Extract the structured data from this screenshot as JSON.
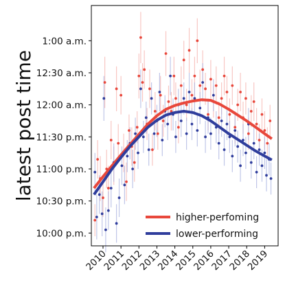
{
  "chart_data": {
    "type": "scatter",
    "title": "",
    "xlabel": "",
    "ylabel": "latest post time",
    "xlim": [
      2009.35,
      2019.75
    ],
    "ylim": [
      -2.2,
      1.55
    ],
    "x_ticks": [
      {
        "value": 2010,
        "label": "2010"
      },
      {
        "value": 2011,
        "label": "2011"
      },
      {
        "value": 2012,
        "label": "2012"
      },
      {
        "value": 2013,
        "label": "2013"
      },
      {
        "value": 2014,
        "label": "2014"
      },
      {
        "value": 2015,
        "label": "2015"
      },
      {
        "value": 2016,
        "label": "2016"
      },
      {
        "value": 2017,
        "label": "2017"
      },
      {
        "value": 2018,
        "label": "2018"
      },
      {
        "value": 2019,
        "label": "2019"
      }
    ],
    "y_ticks": [
      {
        "value": 1.0,
        "label": "1:00 a.m."
      },
      {
        "value": 0.5,
        "label": "12:30 a.m."
      },
      {
        "value": 0.0,
        "label": "12:00 a.m."
      },
      {
        "value": -0.5,
        "label": "11:30 p.m."
      },
      {
        "value": -1.0,
        "label": "11:00 p.m."
      },
      {
        "value": -1.5,
        "label": "10:30 p.m."
      },
      {
        "value": -2.0,
        "label": "10:00 p.m."
      }
    ],
    "legend_position": "lower-right",
    "series": [
      {
        "name": "higher-perfoming",
        "color": "#e8473b",
        "error_color": "#f5b3ad",
        "trend": [
          [
            2009.5,
            -1.3
          ],
          [
            2010.0,
            -1.12
          ],
          [
            2010.5,
            -0.95
          ],
          [
            2011.0,
            -0.78
          ],
          [
            2011.5,
            -0.62
          ],
          [
            2012.0,
            -0.46
          ],
          [
            2012.5,
            -0.3
          ],
          [
            2013.0,
            -0.17
          ],
          [
            2013.5,
            -0.07
          ],
          [
            2014.0,
            -0.01
          ],
          [
            2014.5,
            0.03
          ],
          [
            2015.0,
            0.06
          ],
          [
            2015.5,
            0.08
          ],
          [
            2016.0,
            0.07
          ],
          [
            2016.5,
            0.01
          ],
          [
            2017.0,
            -0.07
          ],
          [
            2017.5,
            -0.16
          ],
          [
            2018.0,
            -0.25
          ],
          [
            2018.5,
            -0.35
          ],
          [
            2019.0,
            -0.45
          ],
          [
            2019.4,
            -0.53
          ]
        ],
        "points": [
          [
            2009.55,
            -1.8,
            0.25
          ],
          [
            2009.7,
            -0.85,
            0.3
          ],
          [
            2009.85,
            -1.15,
            0.35
          ],
          [
            2010.0,
            -1.45,
            0.3
          ],
          [
            2010.1,
            0.35,
            0.4
          ],
          [
            2010.2,
            -1.0,
            0.3
          ],
          [
            2010.3,
            -1.3,
            0.35
          ],
          [
            2010.45,
            -0.55,
            0.3
          ],
          [
            2010.6,
            -0.95,
            0.3
          ],
          [
            2010.75,
            0.25,
            0.35
          ],
          [
            2010.85,
            -0.6,
            0.3
          ],
          [
            2011.0,
            0.15,
            0.3
          ],
          [
            2011.15,
            -0.75,
            0.3
          ],
          [
            2011.3,
            -1.2,
            0.3
          ],
          [
            2011.45,
            -0.4,
            0.25
          ],
          [
            2011.6,
            -0.65,
            0.3
          ],
          [
            2011.75,
            -0.9,
            0.3
          ],
          [
            2011.9,
            -0.35,
            0.25
          ],
          [
            2012.0,
            0.45,
            0.35
          ],
          [
            2012.1,
            1.05,
            0.4
          ],
          [
            2012.2,
            0.35,
            0.3
          ],
          [
            2012.3,
            0.55,
            0.3
          ],
          [
            2012.45,
            -0.3,
            0.25
          ],
          [
            2012.6,
            0.25,
            0.3
          ],
          [
            2012.75,
            -0.7,
            0.25
          ],
          [
            2012.9,
            -0.1,
            0.3
          ],
          [
            2013.05,
            -0.45,
            0.25
          ],
          [
            2013.2,
            0.15,
            0.3
          ],
          [
            2013.35,
            -0.25,
            0.25
          ],
          [
            2013.5,
            0.8,
            0.35
          ],
          [
            2013.65,
            0.05,
            0.25
          ],
          [
            2013.8,
            -0.1,
            0.3
          ],
          [
            2013.95,
            0.45,
            0.3
          ],
          [
            2014.05,
            0.1,
            0.25
          ],
          [
            2014.2,
            -0.35,
            0.25
          ],
          [
            2014.35,
            0.3,
            0.3
          ],
          [
            2014.5,
            0.7,
            0.3
          ],
          [
            2014.65,
            0.0,
            0.25
          ],
          [
            2014.8,
            0.85,
            0.35
          ],
          [
            2014.95,
            0.15,
            0.25
          ],
          [
            2015.1,
            0.45,
            0.3
          ],
          [
            2015.25,
            1.0,
            0.35
          ],
          [
            2015.4,
            0.3,
            0.25
          ],
          [
            2015.55,
            0.55,
            0.3
          ],
          [
            2015.7,
            0.25,
            0.25
          ],
          [
            2015.85,
            -0.15,
            0.25
          ],
          [
            2016.0,
            0.4,
            0.3
          ],
          [
            2016.15,
            0.05,
            0.25
          ],
          [
            2016.3,
            0.3,
            0.3
          ],
          [
            2016.45,
            -0.2,
            0.25
          ],
          [
            2016.6,
            0.1,
            0.25
          ],
          [
            2016.75,
            0.45,
            0.3
          ],
          [
            2016.9,
            0.2,
            0.25
          ],
          [
            2017.05,
            -0.15,
            0.25
          ],
          [
            2017.2,
            0.3,
            0.3
          ],
          [
            2017.35,
            -0.35,
            0.25
          ],
          [
            2017.5,
            0.0,
            0.25
          ],
          [
            2017.65,
            0.2,
            0.3
          ],
          [
            2017.8,
            -0.2,
            0.25
          ],
          [
            2017.95,
            0.1,
            0.25
          ],
          [
            2018.1,
            -0.45,
            0.25
          ],
          [
            2018.25,
            -0.1,
            0.25
          ],
          [
            2018.4,
            0.05,
            0.3
          ],
          [
            2018.55,
            -0.3,
            0.25
          ],
          [
            2018.7,
            -0.55,
            0.25
          ],
          [
            2018.85,
            -0.15,
            0.25
          ],
          [
            2019.0,
            -0.4,
            0.3
          ],
          [
            2019.15,
            -0.6,
            0.25
          ],
          [
            2019.3,
            -0.25,
            0.25
          ]
        ]
      },
      {
        "name": "lower-performing",
        "color": "#2f3d9c",
        "error_color": "#aab3e0",
        "trend": [
          [
            2009.5,
            -1.4
          ],
          [
            2010.0,
            -1.2
          ],
          [
            2010.5,
            -1.0
          ],
          [
            2011.0,
            -0.82
          ],
          [
            2011.5,
            -0.65
          ],
          [
            2012.0,
            -0.5
          ],
          [
            2012.5,
            -0.35
          ],
          [
            2013.0,
            -0.24
          ],
          [
            2013.5,
            -0.16
          ],
          [
            2014.0,
            -0.12
          ],
          [
            2014.5,
            -0.1
          ],
          [
            2015.0,
            -0.12
          ],
          [
            2015.5,
            -0.17
          ],
          [
            2016.0,
            -0.25
          ],
          [
            2016.5,
            -0.35
          ],
          [
            2017.0,
            -0.45
          ],
          [
            2017.5,
            -0.54
          ],
          [
            2018.0,
            -0.63
          ],
          [
            2018.5,
            -0.72
          ],
          [
            2019.0,
            -0.8
          ],
          [
            2019.4,
            -0.86
          ]
        ],
        "points": [
          [
            2009.55,
            -1.05,
            0.3
          ],
          [
            2009.65,
            -1.75,
            0.35
          ],
          [
            2009.8,
            -1.4,
            0.3
          ],
          [
            2009.95,
            -1.7,
            0.35
          ],
          [
            2010.05,
            0.1,
            0.35
          ],
          [
            2010.15,
            -1.95,
            0.35
          ],
          [
            2010.3,
            -1.65,
            0.3
          ],
          [
            2010.45,
            -1.3,
            0.3
          ],
          [
            2010.6,
            -0.9,
            0.3
          ],
          [
            2010.75,
            -1.85,
            0.3
          ],
          [
            2010.9,
            -1.45,
            0.3
          ],
          [
            2011.05,
            -0.95,
            0.3
          ],
          [
            2011.2,
            -1.25,
            0.3
          ],
          [
            2011.35,
            -0.8,
            0.25
          ],
          [
            2011.5,
            -0.6,
            0.25
          ],
          [
            2011.65,
            -1.0,
            0.3
          ],
          [
            2011.8,
            -0.45,
            0.25
          ],
          [
            2011.95,
            -0.75,
            0.25
          ],
          [
            2012.1,
            0.25,
            0.3
          ],
          [
            2012.25,
            -0.5,
            0.25
          ],
          [
            2012.4,
            -0.2,
            0.25
          ],
          [
            2012.55,
            -0.7,
            0.25
          ],
          [
            2012.7,
            0.1,
            0.25
          ],
          [
            2012.85,
            -0.45,
            0.25
          ],
          [
            2013.0,
            -0.25,
            0.25
          ],
          [
            2013.15,
            0.2,
            0.3
          ],
          [
            2013.3,
            -0.55,
            0.25
          ],
          [
            2013.45,
            -0.1,
            0.25
          ],
          [
            2013.6,
            -0.3,
            0.25
          ],
          [
            2013.75,
            0.45,
            0.3
          ],
          [
            2013.9,
            -0.15,
            0.25
          ],
          [
            2014.05,
            -0.5,
            0.25
          ],
          [
            2014.2,
            0.0,
            0.25
          ],
          [
            2014.35,
            -0.25,
            0.25
          ],
          [
            2014.5,
            0.1,
            0.25
          ],
          [
            2014.65,
            -0.45,
            0.25
          ],
          [
            2014.8,
            0.2,
            0.3
          ],
          [
            2014.95,
            -0.3,
            0.25
          ],
          [
            2015.1,
            0.1,
            0.25
          ],
          [
            2015.25,
            -0.4,
            0.25
          ],
          [
            2015.4,
            -0.05,
            0.25
          ],
          [
            2015.55,
            0.35,
            0.3
          ],
          [
            2015.7,
            -0.5,
            0.25
          ],
          [
            2015.85,
            -0.2,
            0.25
          ],
          [
            2016.0,
            -0.45,
            0.25
          ],
          [
            2016.15,
            0.15,
            0.25
          ],
          [
            2016.3,
            -0.35,
            0.25
          ],
          [
            2016.45,
            -0.6,
            0.25
          ],
          [
            2016.6,
            -0.25,
            0.25
          ],
          [
            2016.75,
            -0.7,
            0.25
          ],
          [
            2016.9,
            -0.3,
            0.25
          ],
          [
            2017.05,
            -0.5,
            0.25
          ],
          [
            2017.2,
            -0.8,
            0.25
          ],
          [
            2017.35,
            -0.4,
            0.25
          ],
          [
            2017.5,
            -0.65,
            0.25
          ],
          [
            2017.65,
            -0.95,
            0.25
          ],
          [
            2017.8,
            -0.55,
            0.25
          ],
          [
            2017.95,
            -0.75,
            0.25
          ],
          [
            2018.1,
            -0.3,
            0.25
          ],
          [
            2018.25,
            -0.9,
            0.25
          ],
          [
            2018.4,
            -0.6,
            0.25
          ],
          [
            2018.55,
            -1.05,
            0.25
          ],
          [
            2018.7,
            -0.7,
            0.25
          ],
          [
            2018.85,
            -0.95,
            0.25
          ],
          [
            2019.0,
            -0.75,
            0.25
          ],
          [
            2019.1,
            -1.1,
            0.25
          ],
          [
            2019.25,
            -0.85,
            0.25
          ],
          [
            2019.35,
            -1.15,
            0.25
          ]
        ]
      }
    ]
  }
}
